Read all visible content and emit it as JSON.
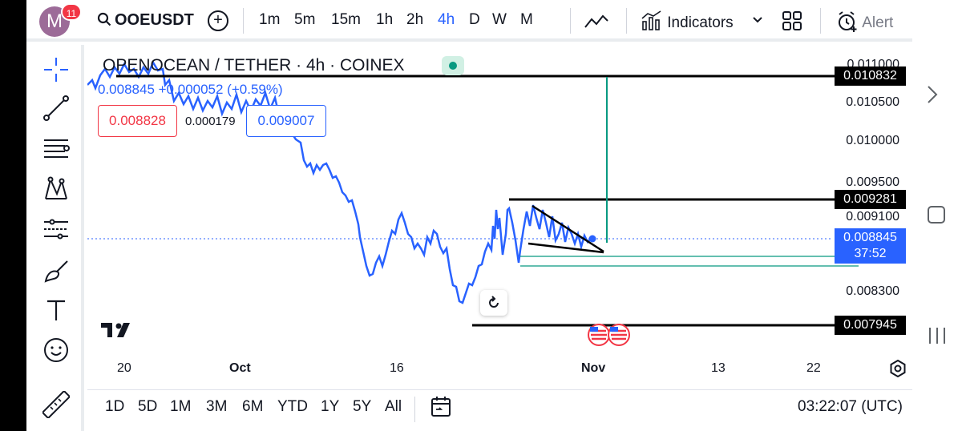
{
  "header": {
    "avatar_letter": "M",
    "notifications": "11",
    "symbol": "OOEUSDT",
    "add_label": "+",
    "timeframes": [
      "1m",
      "5m",
      "15m",
      "1h",
      "2h",
      "4h",
      "D",
      "W",
      "M"
    ],
    "active_timeframe": "4h",
    "indicators_label": "Indicators",
    "alert_label": "Alert"
  },
  "legend": {
    "title": "OPENOCEAN / TETHER · 4h · COINEX",
    "values": "0.008845 +0.000052 (+0.59%)",
    "sell_price": "0.008828",
    "spread": "0.000179",
    "buy_price": "0.009007",
    "status_color": "#089981"
  },
  "price_axis": {
    "ticks": [
      "0.011000",
      "0.010500",
      "0.010000",
      "0.009500",
      "0.009100",
      "0.008300"
    ],
    "labels": [
      "0.010832",
      "0.009281",
      "0.007945"
    ],
    "last_price": "0.008845",
    "countdown": "37:52"
  },
  "time_axis": {
    "ticks": [
      "20",
      "Oct",
      "16",
      "Nov",
      "13",
      "22"
    ]
  },
  "bottom": {
    "ranges": [
      "1D",
      "5D",
      "1M",
      "3M",
      "6M",
      "YTD",
      "1Y",
      "5Y",
      "All"
    ],
    "clock": "03:22:07 (UTC)"
  },
  "colors": {
    "line": "#2962ff",
    "target": "#089981",
    "accent": "#2962ff"
  },
  "icons": [
    "search-icon",
    "plus-icon",
    "line-chart-icon",
    "indicators-icon",
    "chevron-down-icon",
    "layout-icon",
    "alert-clock-icon",
    "crosshair-icon",
    "trendline-icon",
    "fib-icon",
    "pattern-icon",
    "forecast-icon",
    "brush-icon",
    "text-icon",
    "emoji-icon",
    "ruler-icon",
    "reload-icon",
    "calendar-icon",
    "settings-icon"
  ]
}
